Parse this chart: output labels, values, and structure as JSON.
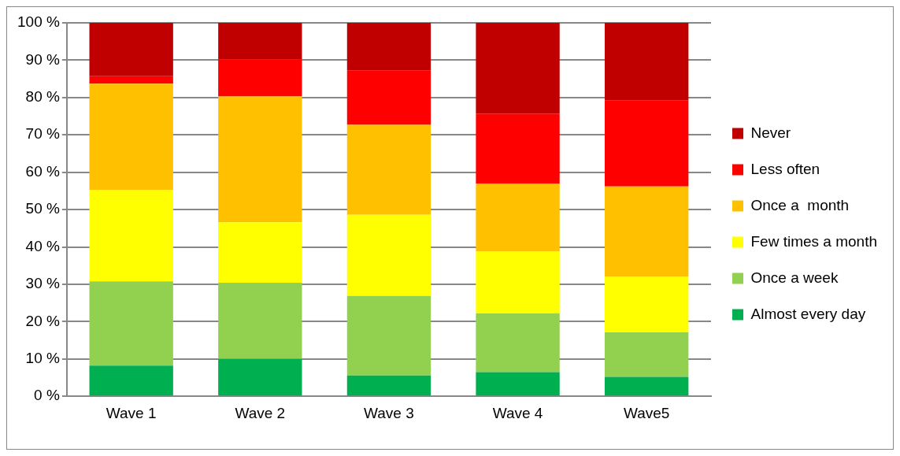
{
  "chart_data": {
    "type": "bar",
    "stacked": true,
    "categories": [
      "Wave 1",
      "Wave 2",
      "Wave 3",
      "Wave 4",
      "Wave5"
    ],
    "series": [
      {
        "name": "Almost every day",
        "color": "#00b050",
        "values": [
          8.2,
          10.0,
          5.6,
          6.5,
          5.2
        ]
      },
      {
        "name": "Once a week",
        "color": "#92d050",
        "values": [
          22.6,
          20.4,
          21.3,
          15.7,
          11.9
        ]
      },
      {
        "name": "Few times a month",
        "color": "#ffff00",
        "values": [
          24.5,
          16.2,
          21.7,
          16.6,
          15.0
        ]
      },
      {
        "name": "Once a  month",
        "color": "#ffc000",
        "values": [
          28.4,
          33.7,
          24.1,
          18.2,
          24.1
        ]
      },
      {
        "name": "Less often",
        "color": "#ff0000",
        "values": [
          2.0,
          9.9,
          14.5,
          18.7,
          23.0
        ]
      },
      {
        "name": "Never",
        "color": "#c00000",
        "values": [
          14.3,
          9.8,
          12.8,
          24.3,
          20.8
        ]
      }
    ],
    "ylim": [
      0,
      100
    ],
    "yticks": [
      {
        "value": 0,
        "label": "0 %"
      },
      {
        "value": 10,
        "label": "10 %"
      },
      {
        "value": 20,
        "label": "20 %"
      },
      {
        "value": 30,
        "label": "30 %"
      },
      {
        "value": 40,
        "label": "40 %"
      },
      {
        "value": 50,
        "label": "50 %"
      },
      {
        "value": 60,
        "label": "60 %"
      },
      {
        "value": 70,
        "label": "70 %"
      },
      {
        "value": 80,
        "label": "80 %"
      },
      {
        "value": 90,
        "label": "90 %"
      },
      {
        "value": 100,
        "label": "100 %"
      }
    ],
    "grid": "y",
    "legend": "right"
  }
}
